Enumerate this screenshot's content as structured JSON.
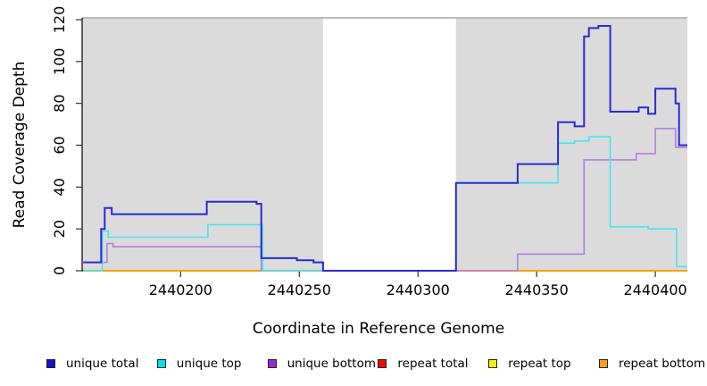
{
  "figure": {
    "x_title": "Coordinate in Reference Genome",
    "y_title": "Read Coverage Depth"
  },
  "legend": {
    "items": [
      {
        "label": "unique total",
        "color": "#1414CE"
      },
      {
        "label": "unique top",
        "color": "#00E0EE"
      },
      {
        "label": "unique bottom",
        "color": "#9B28D8"
      },
      {
        "label": "repeat total",
        "color": "#E81000"
      },
      {
        "label": "repeat top",
        "color": "#F2F200"
      },
      {
        "label": "repeat bottom",
        "color": "#FFA008"
      }
    ]
  },
  "chart_data": {
    "type": "line",
    "interpolation": "step-after",
    "title": "",
    "xlabel": "Coordinate in Reference Genome",
    "ylabel": "Read Coverage Depth",
    "x_domain": [
      2440158.5,
      2440413.5
    ],
    "y_domain": [
      0,
      122
    ],
    "x_ticks": [
      2440200,
      2440250,
      2440300,
      2440350,
      2440400
    ],
    "y_ticks": [
      0,
      20,
      40,
      60,
      80,
      100,
      120
    ],
    "grid": false,
    "panel_color": "#DBDBDB",
    "gap_band": {
      "x0": 2440260,
      "x1": 2440316,
      "color": "#FFFFFF"
    },
    "series": [
      {
        "name": "repeat total",
        "color": "#E01000",
        "width": 1.5,
        "points": [
          [
            2440159,
            0
          ],
          [
            2440413.5,
            0
          ]
        ]
      },
      {
        "name": "repeat top",
        "color": "#F0F000",
        "width": 1.5,
        "points": [
          [
            2440159,
            0
          ],
          [
            2440413.5,
            0
          ]
        ]
      },
      {
        "name": "repeat bottom",
        "color": "#FF9E00",
        "width": 2,
        "points": [
          [
            2440159,
            0
          ],
          [
            2440413.5,
            0
          ]
        ]
      },
      {
        "name": "unique bottom",
        "color": "#B47FDE",
        "width": 1.6,
        "points": [
          [
            2440159,
            4
          ],
          [
            2440169,
            13
          ],
          [
            2440171.5,
            11.5
          ],
          [
            2440234,
            0
          ],
          [
            2440342,
            8
          ],
          [
            2440370,
            53
          ],
          [
            2440392,
            56
          ],
          [
            2440400,
            68
          ],
          [
            2440408.5,
            59
          ],
          [
            2440413.5,
            59
          ]
        ]
      },
      {
        "name": "unique top",
        "color": "#45E6EE",
        "width": 1.6,
        "points": [
          [
            2440159,
            0
          ],
          [
            2440167,
            19
          ],
          [
            2440169.5,
            16
          ],
          [
            2440211.5,
            22
          ],
          [
            2440234.5,
            0
          ],
          [
            2440316,
            42
          ],
          [
            2440359,
            61
          ],
          [
            2440366,
            62
          ],
          [
            2440372,
            64
          ],
          [
            2440381,
            21
          ],
          [
            2440397,
            20
          ],
          [
            2440409,
            2
          ],
          [
            2440413.5,
            2
          ]
        ]
      },
      {
        "name": "unique total",
        "color": "#2A2AD6",
        "width": 2,
        "points": [
          [
            2440159,
            4
          ],
          [
            2440166.5,
            20
          ],
          [
            2440168,
            30
          ],
          [
            2440171,
            27
          ],
          [
            2440211,
            33
          ],
          [
            2440232,
            32
          ],
          [
            2440234,
            6
          ],
          [
            2440249,
            5
          ],
          [
            2440256,
            4
          ],
          [
            2440260,
            0
          ],
          [
            2440316,
            42
          ],
          [
            2440342,
            51
          ],
          [
            2440359,
            71
          ],
          [
            2440366,
            69
          ],
          [
            2440370,
            112
          ],
          [
            2440372,
            116
          ],
          [
            2440376,
            117
          ],
          [
            2440381,
            76
          ],
          [
            2440393,
            78
          ],
          [
            2440397,
            75
          ],
          [
            2440400,
            87
          ],
          [
            2440408.5,
            80
          ],
          [
            2440410,
            60
          ],
          [
            2440413.5,
            60
          ]
        ]
      }
    ]
  }
}
